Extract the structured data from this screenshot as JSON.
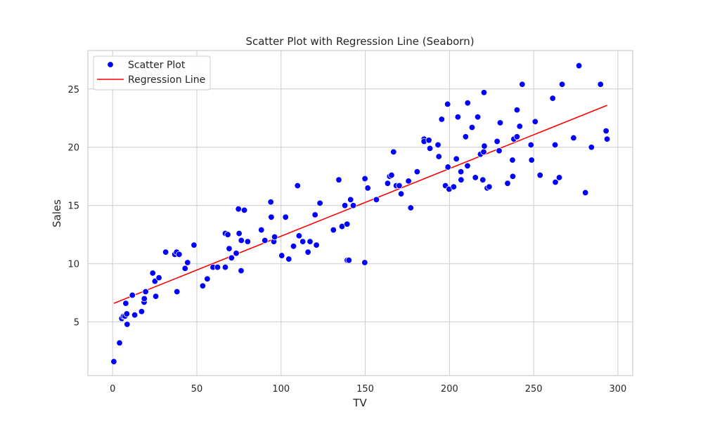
{
  "chart_data": {
    "type": "scatter",
    "title": "Scatter Plot with Regression Line (Seaborn)",
    "xlabel": "TV",
    "ylabel": "Sales",
    "xlim": [
      -14.7,
      308.8
    ],
    "ylim": [
      0.4,
      28.3
    ],
    "x_ticks": [
      0,
      50,
      100,
      150,
      200,
      250,
      300
    ],
    "y_ticks": [
      5,
      10,
      15,
      20,
      25
    ],
    "grid": true,
    "legend_position": "top-left",
    "legend": [
      {
        "label": "Scatter Plot",
        "kind": "marker",
        "color": "#0000ff"
      },
      {
        "label": "Regression Line",
        "kind": "line",
        "color": "#ff0000"
      }
    ],
    "series": [
      {
        "name": "Scatter Plot",
        "kind": "scatter",
        "color": "#0000ff",
        "points": [
          [
            0.7,
            1.6
          ],
          [
            4.1,
            3.2
          ],
          [
            5.4,
            5.3
          ],
          [
            6.4,
            5.5
          ],
          [
            7.3,
            5.5
          ],
          [
            7.8,
            6.6
          ],
          [
            8.4,
            5.7
          ],
          [
            8.6,
            4.8
          ],
          [
            11.7,
            7.3
          ],
          [
            13.1,
            5.6
          ],
          [
            17.2,
            5.9
          ],
          [
            18.7,
            6.7
          ],
          [
            18.8,
            7.0
          ],
          [
            19.6,
            7.6
          ],
          [
            23.8,
            9.2
          ],
          [
            25.1,
            8.5
          ],
          [
            25.6,
            7.2
          ],
          [
            27.5,
            8.8
          ],
          [
            31.5,
            11.0
          ],
          [
            36.9,
            10.8
          ],
          [
            38.0,
            11.0
          ],
          [
            38.2,
            7.6
          ],
          [
            39.5,
            10.8
          ],
          [
            43.0,
            9.6
          ],
          [
            44.5,
            10.1
          ],
          [
            48.3,
            11.6
          ],
          [
            53.5,
            8.1
          ],
          [
            56.2,
            8.7
          ],
          [
            59.6,
            9.7
          ],
          [
            62.3,
            9.7
          ],
          [
            66.9,
            9.7
          ],
          [
            66.9,
            12.6
          ],
          [
            68.4,
            12.5
          ],
          [
            69.2,
            11.3
          ],
          [
            70.6,
            10.5
          ],
          [
            73.4,
            10.9
          ],
          [
            74.7,
            14.7
          ],
          [
            75.1,
            12.6
          ],
          [
            76.3,
            9.4
          ],
          [
            76.4,
            12.0
          ],
          [
            78.2,
            14.6
          ],
          [
            80.2,
            11.9
          ],
          [
            88.3,
            12.9
          ],
          [
            90.4,
            12.0
          ],
          [
            93.9,
            15.3
          ],
          [
            94.2,
            14.0
          ],
          [
            95.7,
            11.9
          ],
          [
            96.2,
            12.3
          ],
          [
            100.4,
            10.7
          ],
          [
            102.7,
            14.0
          ],
          [
            104.6,
            10.4
          ],
          [
            107.4,
            11.5
          ],
          [
            109.8,
            16.7
          ],
          [
            110.7,
            12.4
          ],
          [
            112.9,
            11.9
          ],
          [
            116.0,
            11.0
          ],
          [
            117.2,
            11.9
          ],
          [
            120.2,
            14.2
          ],
          [
            121.0,
            11.6
          ],
          [
            123.1,
            15.2
          ],
          [
            131.1,
            12.9
          ],
          [
            134.3,
            17.2
          ],
          [
            136.2,
            13.2
          ],
          [
            137.9,
            15.0
          ],
          [
            139.2,
            13.4
          ],
          [
            139.3,
            10.3
          ],
          [
            140.3,
            10.3
          ],
          [
            141.3,
            15.5
          ],
          [
            142.9,
            15.0
          ],
          [
            149.7,
            10.1
          ],
          [
            149.8,
            17.3
          ],
          [
            151.5,
            16.5
          ],
          [
            156.6,
            15.5
          ],
          [
            163.3,
            16.9
          ],
          [
            164.5,
            17.5
          ],
          [
            165.6,
            17.6
          ],
          [
            166.8,
            19.6
          ],
          [
            168.4,
            16.7
          ],
          [
            170.2,
            16.7
          ],
          [
            171.3,
            16.0
          ],
          [
            175.7,
            17.1
          ],
          [
            177.0,
            14.8
          ],
          [
            180.8,
            17.9
          ],
          [
            184.9,
            20.7
          ],
          [
            184.9,
            20.5
          ],
          [
            187.8,
            20.6
          ],
          [
            188.4,
            19.9
          ],
          [
            193.2,
            20.2
          ],
          [
            193.7,
            19.2
          ],
          [
            195.4,
            22.4
          ],
          [
            197.6,
            16.7
          ],
          [
            198.9,
            23.7
          ],
          [
            199.1,
            18.3
          ],
          [
            199.8,
            16.4
          ],
          [
            202.5,
            16.6
          ],
          [
            204.1,
            19.0
          ],
          [
            205.0,
            22.6
          ],
          [
            206.9,
            17.2
          ],
          [
            206.8,
            17.9
          ],
          [
            209.6,
            20.9
          ],
          [
            210.7,
            18.4
          ],
          [
            210.8,
            23.8
          ],
          [
            213.4,
            21.7
          ],
          [
            215.4,
            17.4
          ],
          [
            216.8,
            22.6
          ],
          [
            218.4,
            19.4
          ],
          [
            219.8,
            17.2
          ],
          [
            220.3,
            19.6
          ],
          [
            220.5,
            24.7
          ],
          [
            220.7,
            20.1
          ],
          [
            222.4,
            16.5
          ],
          [
            223.6,
            16.6
          ],
          [
            228.3,
            20.5
          ],
          [
            229.5,
            19.7
          ],
          [
            230.1,
            22.1
          ],
          [
            234.5,
            16.9
          ],
          [
            237.4,
            18.9
          ],
          [
            237.6,
            17.5
          ],
          [
            238.2,
            20.7
          ],
          [
            240.1,
            23.2
          ],
          [
            240.1,
            20.9
          ],
          [
            241.7,
            21.8
          ],
          [
            243.2,
            25.4
          ],
          [
            248.4,
            20.2
          ],
          [
            248.8,
            18.9
          ],
          [
            250.9,
            22.2
          ],
          [
            253.8,
            17.6
          ],
          [
            261.3,
            24.2
          ],
          [
            262.7,
            20.2
          ],
          [
            262.9,
            17.0
          ],
          [
            265.2,
            17.4
          ],
          [
            266.9,
            25.4
          ],
          [
            273.7,
            20.8
          ],
          [
            276.9,
            27.0
          ],
          [
            280.7,
            16.1
          ],
          [
            284.3,
            20.0
          ],
          [
            289.7,
            25.4
          ],
          [
            293.0,
            21.4
          ],
          [
            293.6,
            20.7
          ]
        ]
      },
      {
        "name": "Regression Line",
        "kind": "line",
        "color": "#ff0000",
        "points": [
          [
            0.7,
            6.6
          ],
          [
            293.6,
            23.6
          ]
        ]
      }
    ]
  }
}
